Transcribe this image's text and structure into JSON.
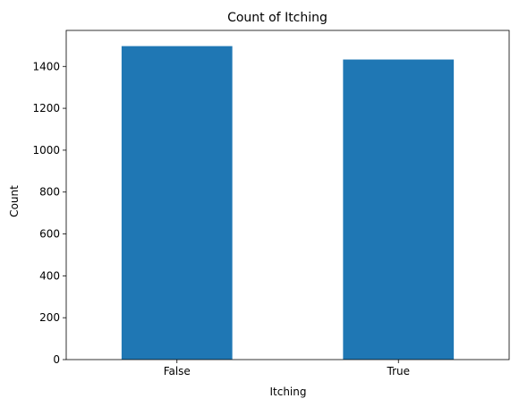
{
  "chart_data": {
    "type": "bar",
    "title": "Count of Itching",
    "xlabel": "Itching",
    "ylabel": "Count",
    "categories": [
      "False",
      "True"
    ],
    "values": [
      1497,
      1433
    ],
    "ylim": [
      0,
      1572
    ],
    "yticks": [
      0,
      200,
      400,
      600,
      800,
      1000,
      1200,
      1400
    ],
    "bar_color": "#1f77b4",
    "grid": false,
    "legend": "none"
  }
}
